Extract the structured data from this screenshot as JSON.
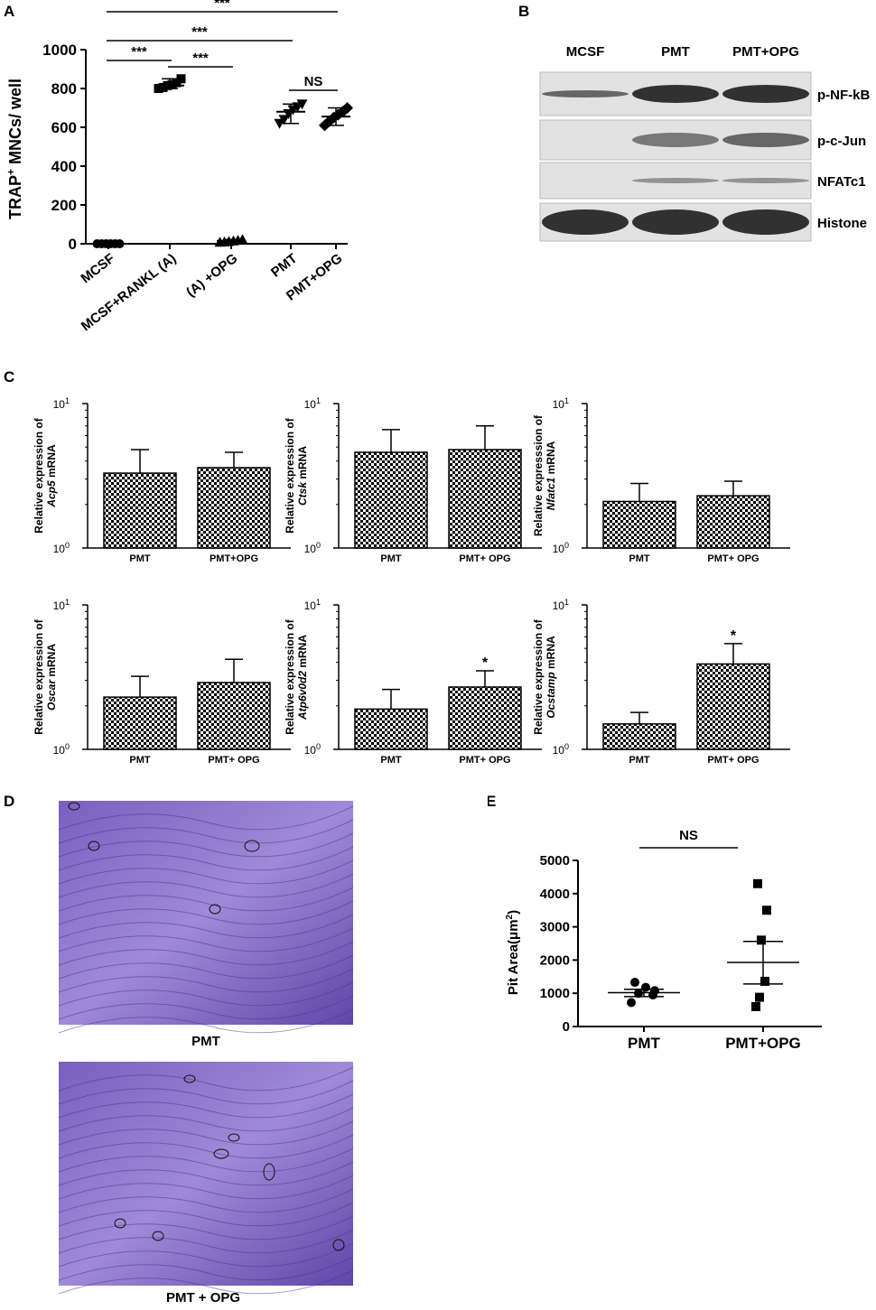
{
  "panels": {
    "A": "A",
    "B": "B",
    "C": "C",
    "D": "D",
    "E": "E"
  },
  "colors": {
    "ink": "#000000",
    "blot_bg": "#dcdcdc",
    "blot_band": "#2a2a2a",
    "stain": "#6b4fb0",
    "stain_dark": "#3f2a80"
  },
  "icons": {
    "hatch": "checker-pattern",
    "markers": [
      "circle",
      "square",
      "triangle-up",
      "triangle-down",
      "diamond"
    ]
  },
  "chart_data": [
    {
      "panel": "A",
      "type": "scatter",
      "ylabel_main": "TRAP",
      "ylabel_sup": "+",
      "ylabel_rest": " MNCs/ well",
      "categories": [
        "MCSF",
        "MCSF+RANKL (A)",
        "(A) +OPG",
        "PMT",
        "PMT+OPG"
      ],
      "ylim": [
        0,
        1000
      ],
      "yticks": [
        0,
        200,
        400,
        600,
        800,
        1000
      ],
      "means": [
        0,
        815,
        15,
        680,
        655
      ],
      "points": [
        [
          0,
          0,
          0,
          0,
          0,
          0
        ],
        [
          800,
          805,
          815,
          820,
          830,
          850
        ],
        [
          8,
          10,
          12,
          15,
          18,
          22
        ],
        [
          620,
          640,
          670,
          690,
          705,
          720
        ],
        [
          610,
          630,
          650,
          665,
          680,
          700
        ]
      ],
      "markers": [
        "circle",
        "square",
        "triangle-up",
        "triangle-down",
        "diamond"
      ],
      "significance": [
        {
          "from": 0,
          "to": 1,
          "label": "***"
        },
        {
          "from": 1,
          "to": 2,
          "label": "***"
        },
        {
          "from": 0,
          "to": 3,
          "label": "***"
        },
        {
          "from": 0,
          "to": 4,
          "label": "***"
        },
        {
          "from": 3,
          "to": 4,
          "label": "NS"
        }
      ]
    },
    {
      "panel": "C",
      "type": "bar",
      "scale": "log",
      "ylim": [
        1,
        10
      ],
      "ytick_base": "10",
      "ytick_exps": [
        "0",
        "1"
      ],
      "charts": [
        {
          "gene": "Acp5",
          "categories": [
            "PMT",
            "PMT+OPG"
          ],
          "values": [
            3.3,
            3.6
          ],
          "errors": [
            4.8,
            4.6
          ],
          "sig": [
            "",
            ""
          ]
        },
        {
          "gene": "Ctsk",
          "categories": [
            "PMT",
            "PMT+ OPG"
          ],
          "values": [
            4.6,
            4.8
          ],
          "errors": [
            6.6,
            7.0
          ],
          "sig": [
            "",
            ""
          ]
        },
        {
          "gene": "Nfatc1",
          "categories": [
            "PMT",
            "PMT+ OPG"
          ],
          "values": [
            2.1,
            2.3
          ],
          "errors": [
            2.8,
            2.9
          ],
          "sig": [
            "",
            ""
          ]
        },
        {
          "gene": "Oscar",
          "categories": [
            "PMT",
            "PMT+ OPG"
          ],
          "values": [
            2.3,
            2.9
          ],
          "errors": [
            3.2,
            4.2
          ],
          "sig": [
            "",
            ""
          ]
        },
        {
          "gene": "Atp6v0d2",
          "categories": [
            "PMT",
            "PMT+ OPG"
          ],
          "values": [
            1.9,
            2.7
          ],
          "errors": [
            2.6,
            3.5
          ],
          "sig": [
            "",
            "*"
          ]
        },
        {
          "gene": "Ocstamp",
          "categories": [
            "PMT",
            "PMT+ OPG"
          ],
          "values": [
            1.5,
            3.9
          ],
          "errors": [
            1.8,
            5.4
          ],
          "sig": [
            "",
            "*"
          ]
        }
      ],
      "ylabel_pre": "Relative expression of",
      "ylabel_post": " mRNA",
      "ylabel_pre_alt": "Relative expresssion of"
    },
    {
      "panel": "E",
      "type": "scatter",
      "ylabel_main": "Pit Area(",
      "ylabel_unit": "μm",
      "ylabel_sup": "2",
      "ylabel_close": ")",
      "categories": [
        "PMT",
        "PMT+OPG"
      ],
      "ylim": [
        0,
        5000
      ],
      "yticks": [
        0,
        1000,
        2000,
        3000,
        4000,
        5000
      ],
      "means": [
        1020,
        1930
      ],
      "sem_low": [
        900,
        1280
      ],
      "sem_high": [
        1120,
        2560
      ],
      "points": [
        [
          720,
          950,
          1000,
          1080,
          1180,
          1330
        ],
        [
          600,
          880,
          1360,
          2600,
          3500,
          4300
        ]
      ],
      "markers": [
        "circle",
        "square"
      ],
      "significance": [
        {
          "from": 0,
          "to": 1,
          "label": "NS"
        }
      ]
    }
  ],
  "blot": {
    "lanes": [
      "MCSF",
      "PMT",
      "PMT+OPG"
    ],
    "rows": [
      "p-NF-kB",
      "p-c-Jun",
      "NFATc1",
      "Histone"
    ]
  },
  "micro": {
    "top_caption": "PMT",
    "bottom_caption": "PMT + OPG"
  }
}
